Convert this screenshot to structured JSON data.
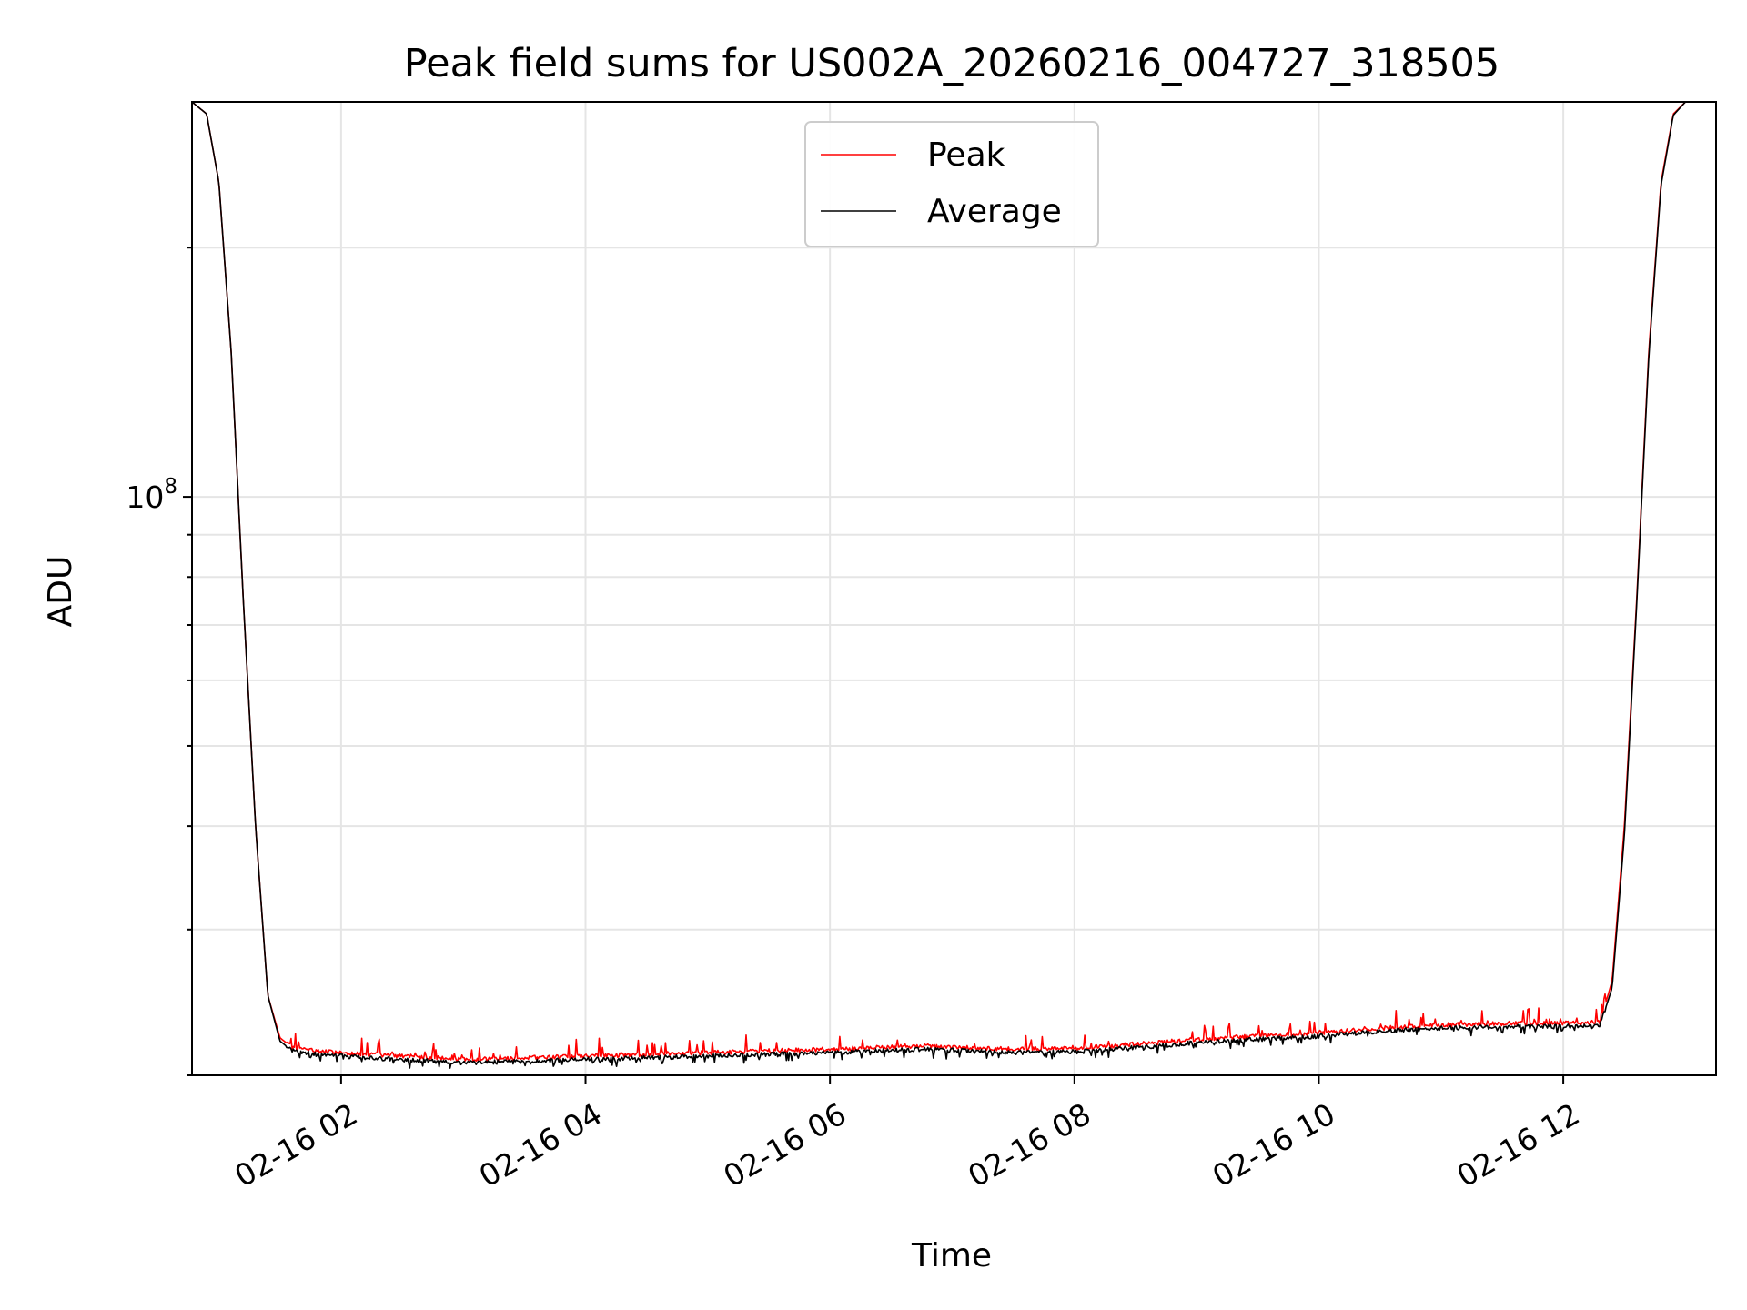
{
  "chart_data": {
    "type": "line",
    "title": "Peak field sums for US002A_20260216_004727_318505",
    "xlabel": "Time",
    "ylabel": "ADU",
    "yscale": "log",
    "ylim": [
      20000000,
      300000000
    ],
    "xlim_hours": [
      0.78,
      13.25
    ],
    "x_ticks": [
      {
        "hour": 2,
        "label": "02-16 02"
      },
      {
        "hour": 4,
        "label": "02-16 04"
      },
      {
        "hour": 6,
        "label": "02-16 06"
      },
      {
        "hour": 8,
        "label": "02-16 08"
      },
      {
        "hour": 10,
        "label": "02-16 10"
      },
      {
        "hour": 12,
        "label": "02-16 12"
      }
    ],
    "y_major_tick": {
      "value": 100000000,
      "label_base": "10",
      "label_exp": "8"
    },
    "y_minor_ticks": [
      20000000,
      30000000,
      40000000,
      50000000,
      60000000,
      70000000,
      80000000,
      90000000,
      200000000
    ],
    "grid": true,
    "legend_position": "upper center",
    "series": [
      {
        "name": "Peak",
        "color": "#ff0000",
        "x_hours": [
          0.78,
          0.9,
          1.0,
          1.1,
          1.2,
          1.3,
          1.4,
          1.5,
          1.6,
          1.8,
          2.0,
          2.5,
          3.0,
          3.5,
          4.0,
          5.0,
          6.0,
          6.8,
          7.5,
          8.0,
          8.5,
          9.0,
          9.5,
          10.0,
          10.5,
          11.0,
          11.5,
          12.0,
          12.3,
          12.4,
          12.5,
          12.6,
          12.7,
          12.8,
          12.9,
          13.0,
          13.1,
          13.25
        ],
        "y": [
          300000000,
          290000000,
          240000000,
          150000000,
          75000000,
          40000000,
          25000000,
          22200000,
          21600000,
          21400000,
          21300000,
          21100000,
          20900000,
          21000000,
          21100000,
          21300000,
          21500000,
          21700000,
          21500000,
          21550000,
          21800000,
          22100000,
          22300000,
          22500000,
          22800000,
          23000000,
          23100000,
          23100000,
          23200000,
          26000000,
          40000000,
          75000000,
          150000000,
          240000000,
          290000000,
          300000000,
          300000000,
          300000000
        ]
      },
      {
        "name": "Average",
        "color": "#000000",
        "x_hours": [
          0.78,
          0.9,
          1.0,
          1.1,
          1.2,
          1.3,
          1.4,
          1.5,
          1.6,
          1.8,
          2.0,
          2.5,
          3.0,
          3.5,
          4.0,
          5.0,
          6.0,
          6.8,
          7.5,
          8.0,
          8.5,
          9.0,
          9.5,
          10.0,
          10.5,
          11.0,
          11.5,
          12.0,
          12.3,
          12.4,
          12.5,
          12.6,
          12.7,
          12.8,
          12.9,
          13.0,
          13.1,
          13.25
        ],
        "y": [
          300000000,
          290000000,
          240000000,
          150000000,
          75000000,
          40000000,
          25000000,
          22000000,
          21400000,
          21200000,
          21100000,
          20900000,
          20700000,
          20800000,
          20900000,
          21100000,
          21300000,
          21500000,
          21300000,
          21350000,
          21600000,
          21900000,
          22100000,
          22300000,
          22600000,
          22800000,
          22900000,
          22900000,
          23000000,
          25500000,
          39000000,
          74000000,
          148000000,
          238000000,
          289000000,
          300000000,
          300000000,
          300000000
        ]
      }
    ]
  }
}
